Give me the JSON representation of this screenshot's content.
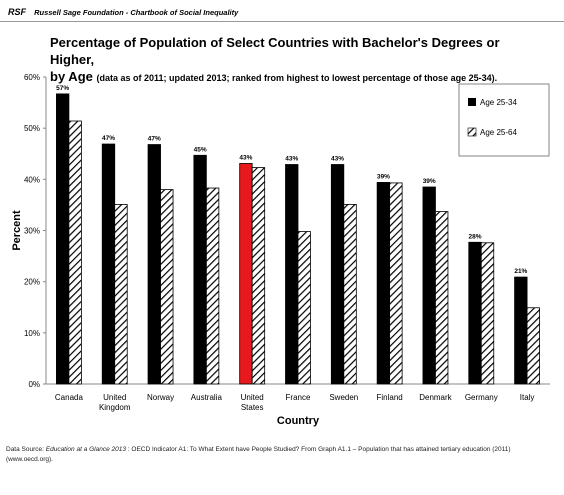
{
  "header": {
    "brand": "RSF",
    "text": "Russell Sage Foundation - Chartbook of Social Inequality"
  },
  "chart_data": {
    "type": "bar",
    "title": "Percentage of Population of Select Countries with Bachelor's Degrees or Higher,",
    "title_line2_lead": "by Age",
    "subtitle": "(data as of 2011; updated 2013; ranked from highest to lowest percentage of those age 25-34).",
    "xlabel": "Country",
    "ylabel": "Percent",
    "ylim": [
      0,
      60
    ],
    "yticks": [
      "0%",
      "10%",
      "20%",
      "30%",
      "40%",
      "50%",
      "60%"
    ],
    "grid": false,
    "legend_position": "top-right",
    "categories": [
      "Canada",
      "United Kingdom",
      "Norway",
      "Australia",
      "United States",
      "France",
      "Sweden",
      "Finland",
      "Denmark",
      "Germany",
      "Italy"
    ],
    "series": [
      {
        "name": "Age 25-34",
        "values": [
          57,
          47,
          47,
          45,
          43,
          43,
          43,
          39,
          39,
          28,
          21
        ],
        "exact_values": [
          56.7,
          46.9,
          46.8,
          44.7,
          43.1,
          42.9,
          42.9,
          39.4,
          38.5,
          27.7,
          20.9
        ],
        "data_labels": [
          "57%",
          "47%",
          "47%",
          "45%",
          "43%",
          "43%",
          "43%",
          "39%",
          "39%",
          "28%",
          "21%"
        ],
        "color": "#000000",
        "highlight_category": "United States",
        "highlight_color": "#e8191c"
      },
      {
        "name": "Age 25-64",
        "values": [
          51.4,
          35.1,
          38.0,
          38.3,
          42.3,
          29.8,
          35.1,
          39.3,
          33.7,
          27.6,
          14.9
        ],
        "pattern": "diagonal-hatch"
      }
    ]
  },
  "source": {
    "prefix": "Data Source: ",
    "publication": "Education at a Glance 2013",
    "rest": " :  OECD Indicator A1: To What Extent have People Studied?  From Graph A1.1 – Population that has attained tertiary education (2011)",
    "line2": "(www.oecd.org)."
  }
}
